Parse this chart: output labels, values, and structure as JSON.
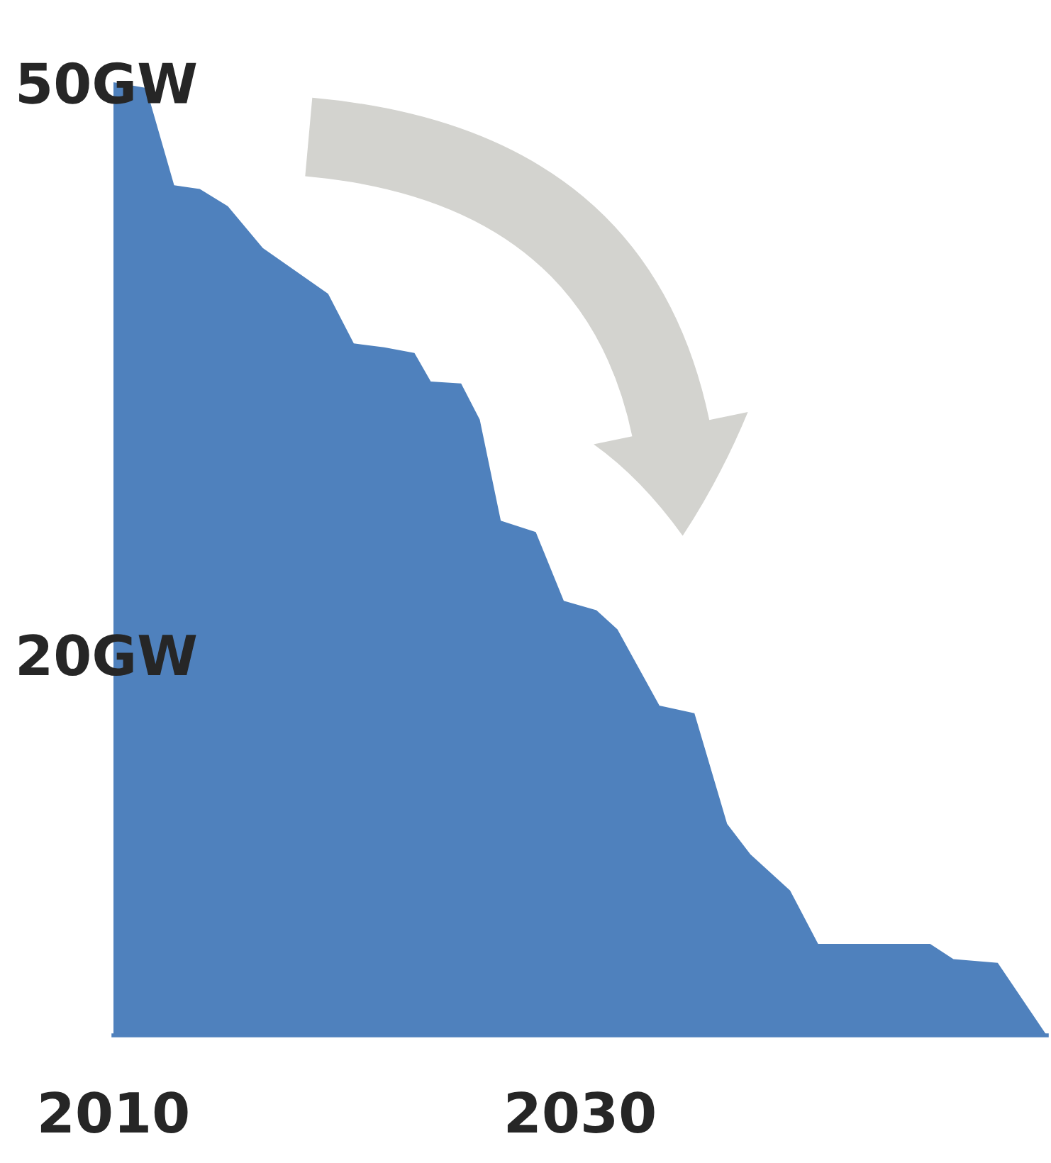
{
  "chart_data": {
    "type": "area",
    "color": "#4f81bd",
    "x": [
      2010,
      2011.4,
      2012.6,
      2013.7,
      2014.9,
      2016.4,
      2019.2,
      2020.3,
      2021.6,
      2022.9,
      2023.6,
      2024.9,
      2025.7,
      2026.6,
      2028.1,
      2029.3,
      2030.7,
      2031.6,
      2033.4,
      2034.9,
      2036.3,
      2037.3,
      2039.0,
      2040.2,
      2045.0,
      2046.0,
      2047.9,
      2050
    ],
    "values": [
      50.0,
      49.7,
      44.6,
      44.4,
      43.5,
      41.3,
      38.9,
      36.3,
      36.1,
      35.8,
      34.3,
      34.2,
      32.3,
      27.0,
      26.4,
      22.8,
      22.3,
      21.3,
      17.3,
      16.9,
      11.1,
      9.5,
      7.6,
      4.8,
      4.8,
      4.0,
      3.8,
      0
    ],
    "xlim": [
      2010,
      2050
    ],
    "ylim": [
      0,
      50
    ],
    "xticks": [
      2010,
      2030
    ],
    "yticks": [
      {
        "value": 20,
        "label": "20GW"
      },
      {
        "value": 50,
        "label": "50GW"
      }
    ],
    "grid": false,
    "legend": false
  }
}
